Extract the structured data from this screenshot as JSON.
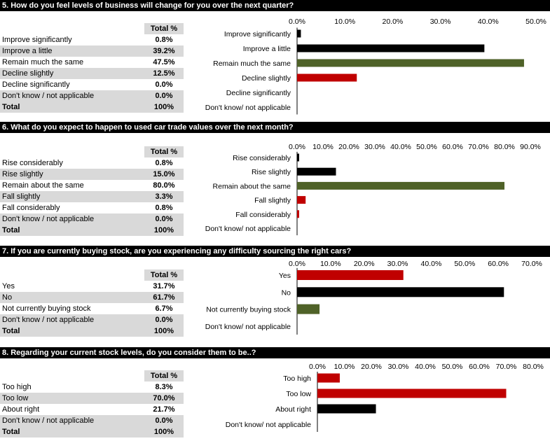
{
  "colors": {
    "black": "#000000",
    "green": "#4f6228",
    "red": "#c00000"
  },
  "questions": [
    {
      "title": "5. How do you feel levels of business will change for you over the next quarter?",
      "table_header": "Total %",
      "rows": [
        {
          "label": "Improve significantly",
          "value": "0.8%"
        },
        {
          "label": "Improve a little",
          "value": "39.2%"
        },
        {
          "label": "Remain much the same",
          "value": "47.5%"
        },
        {
          "label": "Decline slightly",
          "value": "12.5%"
        },
        {
          "label": "Decline significantly",
          "value": "0.0%"
        },
        {
          "label": "Don't know / not applicable",
          "value": "0.0%"
        }
      ],
      "total": {
        "label": "Total",
        "value": "100%"
      }
    },
    {
      "title": "6. What do you expect to happen to used car trade values over the next month?",
      "table_header": "Total %",
      "rows": [
        {
          "label": "Rise considerably",
          "value": "0.8%"
        },
        {
          "label": "Rise slightly",
          "value": "15.0%"
        },
        {
          "label": "Remain about the same",
          "value": "80.0%"
        },
        {
          "label": "Fall slightly",
          "value": "3.3%"
        },
        {
          "label": "Fall considerably",
          "value": "0.8%"
        },
        {
          "label": "Don't know / not applicable",
          "value": "0.0%"
        }
      ],
      "total": {
        "label": "Total",
        "value": "100%"
      }
    },
    {
      "title": "7. If you are currently buying stock, are you experiencing any difficulty sourcing the right cars?",
      "table_header": "Total %",
      "rows": [
        {
          "label": "Yes",
          "value": "31.7%"
        },
        {
          "label": "No",
          "value": "61.7%"
        },
        {
          "label": "Not currently buying stock",
          "value": "6.7%"
        },
        {
          "label": "Don't know / not applicable",
          "value": "0.0%"
        }
      ],
      "total": {
        "label": "Total",
        "value": "100%"
      }
    },
    {
      "title": "8. Regarding your current stock levels, do you consider them to be..?",
      "table_header": "Total %",
      "rows": [
        {
          "label": "Too high",
          "value": "8.3%"
        },
        {
          "label": "Too low",
          "value": "70.0%"
        },
        {
          "label": "About right",
          "value": "21.7%"
        },
        {
          "label": "Don't know / not applicable",
          "value": "0.0%"
        }
      ],
      "total": {
        "label": "Total",
        "value": "100%"
      }
    }
  ],
  "chart_data": [
    {
      "type": "bar",
      "orientation": "horizontal",
      "categories": [
        "Improve significantly",
        "Improve a little",
        "Remain much the same",
        "Decline slightly",
        "Decline significantly",
        "Don't know/ not applicable"
      ],
      "values": [
        0.8,
        39.2,
        47.5,
        12.5,
        0.0,
        0.0
      ],
      "colors": [
        "#000000",
        "#000000",
        "#4f6228",
        "#c00000",
        "#c00000",
        "#c00000"
      ],
      "xlim": [
        0,
        50
      ],
      "ticks": [
        "0.0%",
        "10.0%",
        "20.0%",
        "30.0%",
        "40.0%",
        "50.0%"
      ]
    },
    {
      "type": "bar",
      "orientation": "horizontal",
      "categories": [
        "Rise considerably",
        "Rise slightly",
        "Remain about the same",
        "Fall slightly",
        "Fall considerably",
        "Don't know/ not applicable"
      ],
      "values": [
        0.8,
        15.0,
        80.0,
        3.3,
        0.8,
        0.0
      ],
      "colors": [
        "#000000",
        "#000000",
        "#4f6228",
        "#c00000",
        "#c00000",
        "#c00000"
      ],
      "xlim": [
        0,
        90
      ],
      "ticks": [
        "0.0%",
        "10.0%",
        "20.0%",
        "30.0%",
        "40.0%",
        "50.0%",
        "60.0%",
        "70.0%",
        "80.0%",
        "90.0%"
      ]
    },
    {
      "type": "bar",
      "orientation": "horizontal",
      "categories": [
        "Yes",
        "No",
        "Not currently buying stock",
        "Don't know/ not applicable"
      ],
      "values": [
        31.7,
        61.7,
        6.7,
        0.0
      ],
      "colors": [
        "#c00000",
        "#000000",
        "#4f6228",
        "#4f6228"
      ],
      "xlim": [
        0,
        70
      ],
      "ticks": [
        "0.0%",
        "10.0%",
        "20.0%",
        "30.0%",
        "40.0%",
        "50.0%",
        "60.0%",
        "70.0%"
      ]
    },
    {
      "type": "bar",
      "orientation": "horizontal",
      "categories": [
        "Too high",
        "Too low",
        "About right",
        "Don't know/ not applicable"
      ],
      "values": [
        8.3,
        70.0,
        21.7,
        0.0
      ],
      "colors": [
        "#c00000",
        "#c00000",
        "#000000",
        "#000000"
      ],
      "xlim": [
        0,
        80
      ],
      "ticks": [
        "0.0%",
        "10.0%",
        "20.0%",
        "30.0%",
        "40.0%",
        "50.0%",
        "60.0%",
        "70.0%",
        "80.0%"
      ]
    }
  ]
}
